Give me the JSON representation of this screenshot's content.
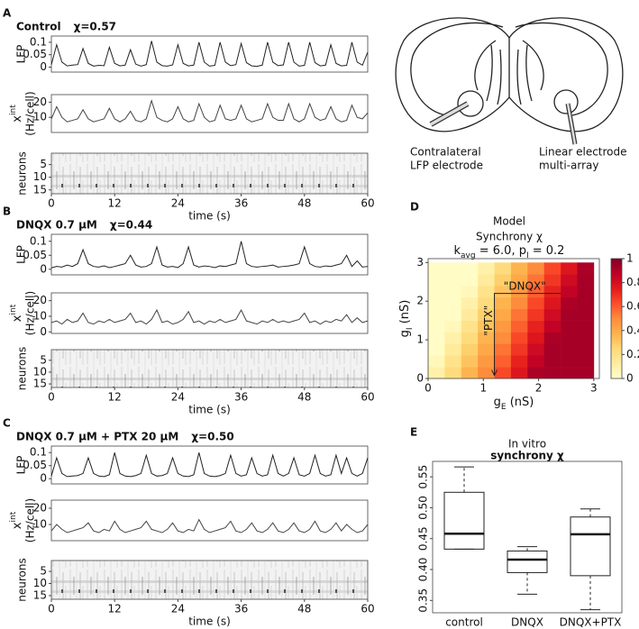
{
  "diagram": {
    "labels": [
      [
        "Contralateral",
        "LFP electrode"
      ],
      [
        "Linear electrode",
        "multi-array"
      ]
    ]
  },
  "chart_data": [
    {
      "type": "line",
      "panel": "A",
      "title": "Control",
      "annotation": "χ=0.57",
      "ylabel": "LFP",
      "x": [
        0,
        1,
        2,
        3,
        4,
        5,
        6,
        7,
        8,
        9,
        10,
        11,
        12,
        13,
        14,
        15,
        16,
        17,
        18,
        19,
        20,
        21,
        22,
        23,
        24,
        25,
        26,
        27,
        28,
        29,
        30,
        31,
        32,
        33,
        34,
        35,
        36,
        37,
        38,
        39,
        40,
        41,
        42,
        43,
        44,
        45,
        46,
        47,
        48,
        49,
        50,
        51,
        52,
        53,
        54,
        55,
        56,
        57,
        58,
        59,
        60
      ],
      "values": [
        0.01,
        0.09,
        0.02,
        0.005,
        0.008,
        0.01,
        0.075,
        0.015,
        0.004,
        0.007,
        0.006,
        0.08,
        0.015,
        0.005,
        0.008,
        0.07,
        0.012,
        0.004,
        0.01,
        0.105,
        0.02,
        0.006,
        0.004,
        0.009,
        0.09,
        0.015,
        0.005,
        0.008,
        0.1,
        0.02,
        0.004,
        0.007,
        0.1,
        0.02,
        0.006,
        0.01,
        0.095,
        0.018,
        0.005,
        0.003,
        0.008,
        0.1,
        0.02,
        0.006,
        0.009,
        0.1,
        0.02,
        0.004,
        0.007,
        0.1,
        0.018,
        0.005,
        0.008,
        0.09,
        0.015,
        0.005,
        0.007,
        0.1,
        0.02,
        0.008,
        0.06
      ],
      "color": "#222222",
      "xlim": [
        0,
        60
      ],
      "ylim": [
        -0.02,
        0.125
      ],
      "yticks": [
        0,
        0.05,
        0.1
      ]
    },
    {
      "type": "line",
      "ylabel": "x",
      "ylabel_sup": "int",
      "ylabel2": "(Hz/cell)",
      "x": [
        0,
        1,
        2,
        3,
        4,
        5,
        6,
        7,
        8,
        9,
        10,
        11,
        12,
        13,
        14,
        15,
        16,
        17,
        18,
        19,
        20,
        21,
        22,
        23,
        24,
        25,
        26,
        27,
        28,
        29,
        30,
        31,
        32,
        33,
        34,
        35,
        36,
        37,
        38,
        39,
        40,
        41,
        42,
        43,
        44,
        45,
        46,
        47,
        48,
        49,
        50,
        51,
        52,
        53,
        54,
        55,
        56,
        57,
        58,
        59,
        60
      ],
      "values": [
        9,
        17,
        10,
        7,
        8,
        9,
        15,
        9,
        7,
        8,
        9,
        16,
        9,
        7,
        9,
        14,
        8,
        7,
        9,
        21,
        10,
        8,
        7,
        9,
        17,
        9,
        7,
        8,
        19,
        10,
        7,
        8,
        18,
        9,
        8,
        9,
        18,
        9,
        7,
        8,
        9,
        19,
        10,
        8,
        8,
        19,
        9,
        7,
        9,
        19,
        10,
        8,
        9,
        17,
        9,
        7,
        8,
        18,
        10,
        9,
        13
      ],
      "color": "#444444",
      "xlim": [
        0,
        60
      ],
      "ylim": [
        0,
        25
      ],
      "yticks": [
        10,
        20
      ]
    },
    {
      "type": "raster",
      "ylabel": "neurons",
      "xlabel": "time (s)",
      "xlim": [
        0,
        60
      ],
      "xticks": [
        0,
        12,
        24,
        36,
        48,
        60
      ],
      "ylim": [
        16.5,
        0.5
      ],
      "yticks": [
        5,
        10,
        15
      ]
    },
    {
      "type": "line",
      "panel": "B",
      "title": "DNQX 0.7 μM",
      "annotation": "χ=0.44",
      "ylabel": "LFP",
      "x": [
        0,
        1,
        2,
        3,
        4,
        5,
        6,
        7,
        8,
        9,
        10,
        11,
        12,
        13,
        14,
        15,
        16,
        17,
        18,
        19,
        20,
        21,
        22,
        23,
        24,
        25,
        26,
        27,
        28,
        29,
        30,
        31,
        32,
        33,
        34,
        35,
        36,
        37,
        38,
        39,
        40,
        41,
        42,
        43,
        44,
        45,
        46,
        47,
        48,
        49,
        50,
        51,
        52,
        53,
        54,
        55,
        56,
        57,
        58,
        59,
        60
      ],
      "values": [
        0.005,
        0.01,
        0.008,
        0.015,
        0.01,
        0.02,
        0.07,
        0.02,
        0.01,
        0.008,
        0.012,
        0.006,
        0.01,
        0.015,
        0.02,
        0.05,
        0.015,
        0.008,
        0.01,
        0.02,
        0.08,
        0.015,
        0.008,
        0.01,
        0.006,
        0.02,
        0.08,
        0.015,
        0.008,
        0.012,
        0.01,
        0.006,
        0.012,
        0.01,
        0.015,
        0.02,
        0.1,
        0.02,
        0.01,
        0.008,
        0.01,
        0.012,
        0.015,
        0.008,
        0.01,
        0.012,
        0.015,
        0.02,
        0.08,
        0.02,
        0.01,
        0.008,
        0.012,
        0.01,
        0.015,
        0.02,
        0.05,
        0.01,
        0.03,
        0.008,
        0.01
      ],
      "color": "#222222",
      "xlim": [
        0,
        60
      ],
      "ylim": [
        -0.02,
        0.125
      ],
      "yticks": [
        0,
        0.05,
        0.1
      ]
    },
    {
      "type": "line",
      "ylabel": "x",
      "ylabel_sup": "int",
      "ylabel2": "(Hz/cell)",
      "x": [
        0,
        1,
        2,
        3,
        4,
        5,
        6,
        7,
        8,
        9,
        10,
        11,
        12,
        13,
        14,
        15,
        16,
        17,
        18,
        19,
        20,
        21,
        22,
        23,
        24,
        25,
        26,
        27,
        28,
        29,
        30,
        31,
        32,
        33,
        34,
        35,
        36,
        37,
        38,
        39,
        40,
        41,
        42,
        43,
        44,
        45,
        46,
        47,
        48,
        49,
        50,
        51,
        52,
        53,
        54,
        55,
        56,
        57,
        58,
        59,
        60
      ],
      "values": [
        6,
        7,
        5,
        8,
        6,
        7,
        12,
        6,
        5,
        7,
        6,
        8,
        6,
        7,
        8,
        12,
        6,
        7,
        5,
        8,
        14,
        6,
        7,
        5,
        6,
        8,
        13,
        6,
        7,
        5,
        7,
        6,
        8,
        6,
        7,
        8,
        14,
        7,
        6,
        5,
        7,
        6,
        8,
        6,
        7,
        6,
        7,
        8,
        12,
        6,
        7,
        5,
        7,
        6,
        8,
        7,
        11,
        6,
        9,
        6,
        7
      ],
      "color": "#444444",
      "xlim": [
        0,
        60
      ],
      "ylim": [
        -1,
        25
      ],
      "yticks": [
        0,
        10,
        20
      ]
    },
    {
      "type": "raster",
      "ylabel": "neurons",
      "xlabel": "time (s)",
      "xlim": [
        0,
        60
      ],
      "xticks": [
        0,
        12,
        24,
        36,
        48,
        60
      ],
      "ylim": [
        16.5,
        0.5
      ],
      "yticks": [
        5,
        10,
        15
      ]
    },
    {
      "type": "line",
      "panel": "C",
      "title": "DNQX 0.7 μM + PTX 20 μM",
      "annotation": "χ=0.50",
      "ylabel": "LFP",
      "x": [
        0,
        1,
        2,
        3,
        4,
        5,
        6,
        7,
        8,
        9,
        10,
        11,
        12,
        13,
        14,
        15,
        16,
        17,
        18,
        19,
        20,
        21,
        22,
        23,
        24,
        25,
        26,
        27,
        28,
        29,
        30,
        31,
        32,
        33,
        34,
        35,
        36,
        37,
        38,
        39,
        40,
        41,
        42,
        43,
        44,
        45,
        46,
        47,
        48,
        49,
        50,
        51,
        52,
        53,
        54,
        55,
        56,
        57,
        58,
        59,
        60
      ],
      "values": [
        0.01,
        0.08,
        0.02,
        0.008,
        0.01,
        0.012,
        0.02,
        0.08,
        0.02,
        0.01,
        0.008,
        0.015,
        0.1,
        0.02,
        0.01,
        0.008,
        0.012,
        0.02,
        0.09,
        0.02,
        0.01,
        0.012,
        0.02,
        0.08,
        0.02,
        0.01,
        0.008,
        0.015,
        0.1,
        0.02,
        0.01,
        0.008,
        0.012,
        0.02,
        0.09,
        0.02,
        0.01,
        0.015,
        0.08,
        0.02,
        0.01,
        0.015,
        0.09,
        0.02,
        0.01,
        0.02,
        0.08,
        0.015,
        0.01,
        0.02,
        0.09,
        0.02,
        0.01,
        0.015,
        0.09,
        0.02,
        0.08,
        0.02,
        0.01,
        0.02,
        0.08
      ],
      "color": "#222222",
      "xlim": [
        0,
        60
      ],
      "ylim": [
        -0.02,
        0.125
      ],
      "yticks": [
        0,
        0.05,
        0.1
      ]
    },
    {
      "type": "line",
      "ylabel": "x",
      "ylabel_sup": "int",
      "ylabel2": "(Hz/cell)",
      "x": [
        0,
        1,
        2,
        3,
        4,
        5,
        6,
        7,
        8,
        9,
        10,
        11,
        12,
        13,
        14,
        15,
        16,
        17,
        18,
        19,
        20,
        21,
        22,
        23,
        24,
        25,
        26,
        27,
        28,
        29,
        30,
        31,
        32,
        33,
        34,
        35,
        36,
        37,
        38,
        39,
        40,
        41,
        42,
        43,
        44,
        45,
        46,
        47,
        48,
        49,
        50,
        51,
        52,
        53,
        54,
        55,
        56,
        57,
        58,
        59,
        60
      ],
      "values": [
        6,
        10,
        7,
        5,
        6,
        7,
        8,
        11,
        6,
        5,
        7,
        6,
        12,
        7,
        5,
        6,
        7,
        8,
        12,
        7,
        6,
        5,
        7,
        11,
        6,
        5,
        7,
        6,
        13,
        7,
        5,
        6,
        7,
        8,
        12,
        6,
        5,
        7,
        11,
        6,
        5,
        7,
        11,
        6,
        5,
        7,
        11,
        6,
        5,
        7,
        12,
        6,
        5,
        7,
        11,
        6,
        10,
        7,
        5,
        6,
        10
      ],
      "color": "#444444",
      "xlim": [
        0,
        60
      ],
      "ylim": [
        0,
        25
      ],
      "yticks": [
        10,
        20
      ]
    },
    {
      "type": "raster",
      "ylabel": "neurons",
      "xlabel": "time (s)",
      "xlim": [
        0,
        60
      ],
      "xticks": [
        0,
        12,
        24,
        36,
        48,
        60
      ],
      "ylim": [
        16.5,
        0.5
      ],
      "yticks": [
        5,
        10,
        15
      ]
    },
    {
      "type": "heatmap",
      "panel": "D",
      "title": "Model",
      "subtitle": "Synchrony χ",
      "subtitle2": [
        "k",
        "avg",
        " = 6.0, p",
        "I",
        " = 0.2"
      ],
      "xlabel": [
        "g",
        "E",
        " (nS)"
      ],
      "ylabel": [
        "g",
        "I",
        " (nS)"
      ],
      "x": [
        0.15,
        0.45,
        0.75,
        1.05,
        1.35,
        1.65,
        1.95,
        2.25,
        2.55,
        2.85
      ],
      "y": [
        0.15,
        0.45,
        0.75,
        1.05,
        1.35,
        1.65,
        1.95,
        2.25,
        2.55,
        2.85
      ],
      "z": [
        [
          0.1,
          0.23,
          0.37,
          0.5,
          0.64,
          0.77,
          0.91,
          0.92,
          0.92,
          0.92
        ],
        [
          0.05,
          0.19,
          0.32,
          0.46,
          0.59,
          0.73,
          0.86,
          0.92,
          0.92,
          0.92
        ],
        [
          0.02,
          0.14,
          0.28,
          0.41,
          0.55,
          0.68,
          0.82,
          0.92,
          0.92,
          0.92
        ],
        [
          0.02,
          0.1,
          0.23,
          0.37,
          0.5,
          0.64,
          0.77,
          0.91,
          0.92,
          0.92
        ],
        [
          0.02,
          0.05,
          0.19,
          0.32,
          0.46,
          0.59,
          0.73,
          0.86,
          0.92,
          0.92
        ],
        [
          0.02,
          0.02,
          0.14,
          0.28,
          0.41,
          0.55,
          0.68,
          0.82,
          0.92,
          0.92
        ],
        [
          0.02,
          0.02,
          0.1,
          0.23,
          0.37,
          0.5,
          0.64,
          0.77,
          0.91,
          0.92
        ],
        [
          0.02,
          0.02,
          0.05,
          0.19,
          0.32,
          0.46,
          0.59,
          0.73,
          0.86,
          0.92
        ],
        [
          0.02,
          0.02,
          0.02,
          0.14,
          0.28,
          0.41,
          0.55,
          0.68,
          0.82,
          0.92
        ],
        [
          0.02,
          0.02,
          0.02,
          0.1,
          0.23,
          0.37,
          0.5,
          0.64,
          0.77,
          0.91
        ]
      ],
      "colormap": "YlOrRd",
      "clim": [
        0,
        1
      ],
      "cticks": [
        0,
        0.2,
        0.4,
        0.6,
        0.8,
        1
      ],
      "xlim": [
        0,
        3.1
      ],
      "ylim": [
        0,
        3.1
      ],
      "xticks": [
        0,
        1,
        2,
        3
      ],
      "yticks": [
        0,
        1,
        2,
        3
      ],
      "annotations": [
        "\"DNQX\"",
        "\"PTX\""
      ]
    },
    {
      "type": "box",
      "panel": "E",
      "title": "In vitro",
      "subtitle": "synchrony χ",
      "categories": [
        "control",
        "DNQX",
        "DNQX+PTX"
      ],
      "whisker_high": [
        0.566,
        0.437,
        0.498
      ],
      "q3": [
        0.525,
        0.43,
        0.485
      ],
      "median": [
        0.458,
        0.416,
        0.457
      ],
      "q1": [
        0.433,
        0.395,
        0.39
      ],
      "whisker_low": [
        0.433,
        0.36,
        0.335
      ],
      "ylim": [
        0.33,
        0.575
      ],
      "yticks": [
        0.35,
        {
          "value": 0.4,
          "label": "0.40"
        },
        0.45,
        {
          "value": 0.5,
          "label": "0.50"
        },
        0.55
      ]
    }
  ]
}
